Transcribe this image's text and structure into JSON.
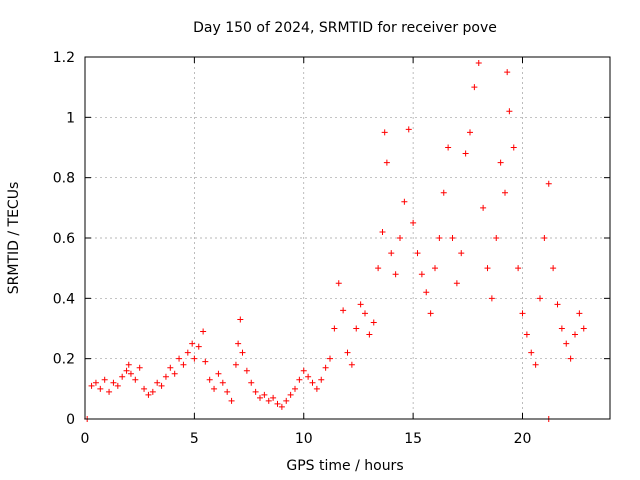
{
  "chart_data": {
    "type": "scatter",
    "title": "Day 150 of 2024, SRMTID for receiver pove",
    "xlabel": "GPS time / hours",
    "ylabel": "SRMTID / TECUs",
    "xlim": [
      0,
      24
    ],
    "ylim": [
      0,
      1.2
    ],
    "xticks": [
      0,
      5,
      10,
      15,
      20
    ],
    "xtick_labels": [
      "0",
      "5",
      "10",
      "15",
      "20"
    ],
    "yticks": [
      0,
      0.2,
      0.4,
      0.6,
      0.8,
      1.0,
      1.2
    ],
    "ytick_labels": [
      "0",
      "0.2",
      "0.4",
      "0.6",
      "0.8",
      "1",
      "1.2"
    ],
    "grid": true,
    "marker": "plus",
    "color": "#ff0000",
    "series": [
      {
        "name": "SRMTID",
        "points": [
          [
            0.1,
            0.0
          ],
          [
            0.3,
            0.11
          ],
          [
            0.5,
            0.12
          ],
          [
            0.7,
            0.1
          ],
          [
            0.9,
            0.13
          ],
          [
            1.1,
            0.09
          ],
          [
            1.3,
            0.12
          ],
          [
            1.5,
            0.11
          ],
          [
            1.7,
            0.14
          ],
          [
            1.9,
            0.16
          ],
          [
            2.0,
            0.18
          ],
          [
            2.1,
            0.15
          ],
          [
            2.3,
            0.13
          ],
          [
            2.5,
            0.17
          ],
          [
            2.7,
            0.1
          ],
          [
            2.9,
            0.08
          ],
          [
            3.1,
            0.09
          ],
          [
            3.3,
            0.12
          ],
          [
            3.5,
            0.11
          ],
          [
            3.7,
            0.14
          ],
          [
            3.9,
            0.17
          ],
          [
            4.1,
            0.15
          ],
          [
            4.3,
            0.2
          ],
          [
            4.5,
            0.18
          ],
          [
            4.7,
            0.22
          ],
          [
            4.9,
            0.25
          ],
          [
            5.0,
            0.2
          ],
          [
            5.2,
            0.24
          ],
          [
            5.4,
            0.29
          ],
          [
            5.5,
            0.19
          ],
          [
            5.7,
            0.13
          ],
          [
            5.9,
            0.1
          ],
          [
            6.1,
            0.15
          ],
          [
            6.3,
            0.12
          ],
          [
            6.5,
            0.09
          ],
          [
            6.7,
            0.06
          ],
          [
            6.9,
            0.18
          ],
          [
            7.0,
            0.25
          ],
          [
            7.1,
            0.33
          ],
          [
            7.2,
            0.22
          ],
          [
            7.4,
            0.16
          ],
          [
            7.6,
            0.12
          ],
          [
            7.8,
            0.09
          ],
          [
            8.0,
            0.07
          ],
          [
            8.2,
            0.08
          ],
          [
            8.4,
            0.06
          ],
          [
            8.6,
            0.07
          ],
          [
            8.8,
            0.05
          ],
          [
            9.0,
            0.04
          ],
          [
            9.2,
            0.06
          ],
          [
            9.4,
            0.08
          ],
          [
            9.6,
            0.1
          ],
          [
            9.8,
            0.13
          ],
          [
            10.0,
            0.16
          ],
          [
            10.2,
            0.14
          ],
          [
            10.4,
            0.12
          ],
          [
            10.6,
            0.1
          ],
          [
            10.8,
            0.13
          ],
          [
            11.0,
            0.17
          ],
          [
            11.2,
            0.2
          ],
          [
            11.4,
            0.3
          ],
          [
            11.6,
            0.45
          ],
          [
            11.8,
            0.36
          ],
          [
            12.0,
            0.22
          ],
          [
            12.2,
            0.18
          ],
          [
            12.4,
            0.3
          ],
          [
            12.6,
            0.38
          ],
          [
            12.8,
            0.35
          ],
          [
            13.0,
            0.28
          ],
          [
            13.2,
            0.32
          ],
          [
            13.4,
            0.5
          ],
          [
            13.6,
            0.62
          ],
          [
            13.8,
            0.85
          ],
          [
            13.7,
            0.95
          ],
          [
            14.0,
            0.55
          ],
          [
            14.2,
            0.48
          ],
          [
            14.4,
            0.6
          ],
          [
            14.6,
            0.72
          ],
          [
            14.8,
            0.96
          ],
          [
            15.0,
            0.65
          ],
          [
            15.2,
            0.55
          ],
          [
            15.4,
            0.48
          ],
          [
            15.6,
            0.42
          ],
          [
            15.8,
            0.35
          ],
          [
            16.0,
            0.5
          ],
          [
            16.2,
            0.6
          ],
          [
            16.4,
            0.75
          ],
          [
            16.6,
            0.9
          ],
          [
            16.8,
            0.6
          ],
          [
            17.0,
            0.45
          ],
          [
            17.2,
            0.55
          ],
          [
            17.4,
            0.88
          ],
          [
            17.6,
            0.95
          ],
          [
            17.8,
            1.1
          ],
          [
            18.0,
            1.18
          ],
          [
            18.2,
            0.7
          ],
          [
            18.4,
            0.5
          ],
          [
            18.6,
            0.4
          ],
          [
            18.8,
            0.6
          ],
          [
            19.0,
            0.85
          ],
          [
            19.2,
            0.75
          ],
          [
            19.4,
            1.02
          ],
          [
            19.3,
            1.15
          ],
          [
            19.6,
            0.9
          ],
          [
            19.8,
            0.5
          ],
          [
            20.0,
            0.35
          ],
          [
            20.2,
            0.28
          ],
          [
            20.4,
            0.22
          ],
          [
            20.6,
            0.18
          ],
          [
            20.8,
            0.4
          ],
          [
            21.0,
            0.6
          ],
          [
            21.2,
            0.78
          ],
          [
            21.4,
            0.5
          ],
          [
            21.6,
            0.38
          ],
          [
            21.8,
            0.3
          ],
          [
            22.0,
            0.25
          ],
          [
            22.2,
            0.2
          ],
          [
            22.4,
            0.28
          ],
          [
            22.6,
            0.35
          ],
          [
            22.8,
            0.3
          ],
          [
            21.2,
            0.0
          ]
        ]
      }
    ]
  }
}
